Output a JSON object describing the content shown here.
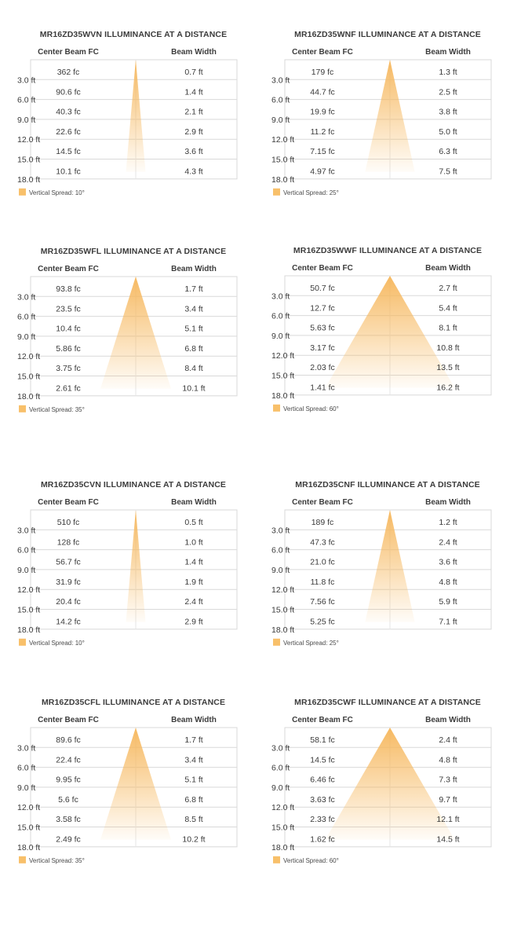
{
  "colors": {
    "beam": "#f6b65a",
    "grid": "#d9d9d9",
    "legend": "#f8c06a",
    "text": "#3a3a3a"
  },
  "chart_data": [
    {
      "type": "table",
      "title": "MR16ZD35WVN ILLUMINANCE AT A DISTANCE",
      "columns": [
        "Center Beam FC",
        "Beam Width"
      ],
      "distances": [
        "3.0 ft",
        "6.0 ft",
        "9.0 ft",
        "12.0 ft",
        "15.0 ft",
        "18.0 ft"
      ],
      "center_beam_fc": [
        "362 fc",
        "90.6 fc",
        "40.3 fc",
        "22.6 fc",
        "14.5 fc",
        "10.1 fc"
      ],
      "beam_width": [
        "0.7 ft",
        "1.4 ft",
        "2.1 ft",
        "2.9 ft",
        "3.6 ft",
        "4.3 ft"
      ],
      "spread_degrees": 10,
      "legend": "Vertical Spread: 10°"
    },
    {
      "type": "table",
      "title": "MR16ZD35WNF ILLUMINANCE AT A DISTANCE",
      "columns": [
        "Center Beam FC",
        "Beam Width"
      ],
      "distances": [
        "3.0 ft",
        "6.0 ft",
        "9.0 ft",
        "12.0 ft",
        "15.0 ft",
        "18.0 ft"
      ],
      "center_beam_fc": [
        "179 fc",
        "44.7 fc",
        "19.9 fc",
        "11.2 fc",
        "7.15 fc",
        "4.97 fc"
      ],
      "beam_width": [
        "1.3 ft",
        "2.5 ft",
        "3.8 ft",
        "5.0 ft",
        "6.3 ft",
        "7.5 ft"
      ],
      "spread_degrees": 25,
      "legend": "Vertical Spread: 25°"
    },
    {
      "type": "table",
      "title": "MR16ZD35WFL ILLUMINANCE AT A DISTANCE",
      "columns": [
        "Center Beam FC",
        "Beam Width"
      ],
      "distances": [
        "3.0 ft",
        "6.0 ft",
        "9.0 ft",
        "12.0 ft",
        "15.0 ft",
        "18.0 ft"
      ],
      "center_beam_fc": [
        "93.8 fc",
        "23.5 fc",
        "10.4 fc",
        "5.86 fc",
        "3.75 fc",
        "2.61 fc"
      ],
      "beam_width": [
        "1.7 ft",
        "3.4 ft",
        "5.1 ft",
        "6.8 ft",
        "8.4 ft",
        "10.1 ft"
      ],
      "spread_degrees": 35,
      "legend": "Vertical Spread: 35°"
    },
    {
      "type": "table",
      "title": "MR16ZD35WWF ILLUMINANCE AT A DISTANCE",
      "columns": [
        "Center Beam FC",
        "Beam Width"
      ],
      "distances": [
        "3.0 ft",
        "6.0 ft",
        "9.0 ft",
        "12.0 ft",
        "15.0 ft",
        "18.0 ft"
      ],
      "center_beam_fc": [
        "50.7 fc",
        "12.7 fc",
        "5.63 fc",
        "3.17 fc",
        "2.03 fc",
        "1.41 fc"
      ],
      "beam_width": [
        "2.7 ft",
        "5.4 ft",
        "8.1 ft",
        "10.8 ft",
        "13.5 ft",
        "16.2 ft"
      ],
      "spread_degrees": 60,
      "legend": "Vertical Spread: 60°"
    },
    {
      "type": "table",
      "title": "MR16ZD35CVN ILLUMINANCE AT A DISTANCE",
      "columns": [
        "Center Beam FC",
        "Beam Width"
      ],
      "distances": [
        "3.0 ft",
        "6.0 ft",
        "9.0 ft",
        "12.0 ft",
        "15.0 ft",
        "18.0 ft"
      ],
      "center_beam_fc": [
        "510 fc",
        "128 fc",
        "56.7 fc",
        "31.9 fc",
        "20.4 fc",
        "14.2 fc"
      ],
      "beam_width": [
        "0.5 ft",
        "1.0 ft",
        "1.4 ft",
        "1.9 ft",
        "2.4 ft",
        "2.9 ft"
      ],
      "spread_degrees": 10,
      "legend": "Vertical Spread: 10°"
    },
    {
      "type": "table",
      "title": "MR16ZD35CNF ILLUMINANCE AT A DISTANCE",
      "columns": [
        "Center Beam FC",
        "Beam Width"
      ],
      "distances": [
        "3.0 ft",
        "6.0 ft",
        "9.0 ft",
        "12.0 ft",
        "15.0 ft",
        "18.0 ft"
      ],
      "center_beam_fc": [
        "189 fc",
        "47.3 fc",
        "21.0 fc",
        "11.8 fc",
        "7.56 fc",
        "5.25 fc"
      ],
      "beam_width": [
        "1.2 ft",
        "2.4 ft",
        "3.6 ft",
        "4.8 ft",
        "5.9 ft",
        "7.1 ft"
      ],
      "spread_degrees": 25,
      "legend": "Vertical Spread: 25°"
    },
    {
      "type": "table",
      "title": "MR16ZD35CFL ILLUMINANCE AT A DISTANCE",
      "columns": [
        "Center Beam FC",
        "Beam Width"
      ],
      "distances": [
        "3.0 ft",
        "6.0 ft",
        "9.0 ft",
        "12.0 ft",
        "15.0 ft",
        "18.0 ft"
      ],
      "center_beam_fc": [
        "89.6 fc",
        "22.4 fc",
        "9.95 fc",
        "5.6 fc",
        "3.58 fc",
        "2.49 fc"
      ],
      "beam_width": [
        "1.7 ft",
        "3.4 ft",
        "5.1 ft",
        "6.8 ft",
        "8.5 ft",
        "10.2 ft"
      ],
      "spread_degrees": 35,
      "legend": "Vertical Spread: 35°"
    },
    {
      "type": "table",
      "title": "MR16ZD35CWF ILLUMINANCE AT A DISTANCE",
      "columns": [
        "Center Beam FC",
        "Beam Width"
      ],
      "distances": [
        "3.0 ft",
        "6.0 ft",
        "9.0 ft",
        "12.0 ft",
        "15.0 ft",
        "18.0 ft"
      ],
      "center_beam_fc": [
        "58.1 fc",
        "14.5 fc",
        "6.46 fc",
        "3.63 fc",
        "2.33 fc",
        "1.62 fc"
      ],
      "beam_width": [
        "2.4 ft",
        "4.8 ft",
        "7.3 ft",
        "9.7 ft",
        "12.1 ft",
        "14.5 ft"
      ],
      "spread_degrees": 60,
      "legend": "Vertical Spread: 60°"
    }
  ]
}
